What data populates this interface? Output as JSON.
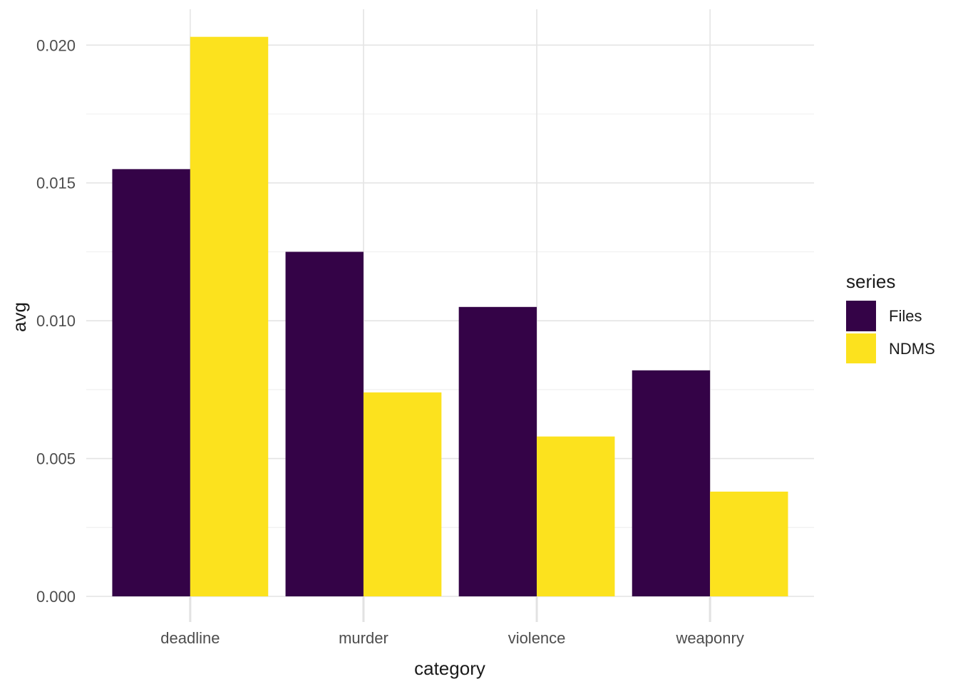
{
  "chart_data": {
    "type": "bar",
    "variant": "grouped-dodged",
    "title": "",
    "xlabel": "category",
    "ylabel": "avg",
    "categories": [
      "deadline",
      "murder",
      "violence",
      "weaponry"
    ],
    "series": [
      {
        "name": "Files",
        "color": "#340347",
        "values": [
          0.0155,
          0.0125,
          0.0105,
          0.0082
        ]
      },
      {
        "name": "NDMS",
        "color": "#FCE21E",
        "values": [
          0.0203,
          0.0074,
          0.0058,
          0.0038
        ]
      }
    ],
    "legend": {
      "title": "series",
      "position": "right",
      "entries": [
        "Files",
        "NDMS"
      ]
    },
    "y_axis": {
      "ticks": [
        0,
        0.005,
        0.01,
        0.015,
        0.02
      ],
      "tick_labels": [
        "0.000",
        "0.005",
        "0.010",
        "0.015",
        "0.020"
      ],
      "minor_ticks": [
        0.0025,
        0.0075,
        0.0125,
        0.0175
      ],
      "ylim": [
        0,
        0.0213
      ]
    },
    "grid": "horizontal major+minor gridlines; vertical major gridlines at category centers; no axis lines (minimal theme)",
    "bar_width_fraction": 0.9
  },
  "palette": {
    "background": "#FFFFFF",
    "tick_label_color": "#4D4D4D",
    "axis_title_color": "#1A1A1A",
    "legend_text_color": "#1A1A1A",
    "gridline_major": "#E4E4E4",
    "gridline_minor": "#EFEFEF",
    "axis_tick_mark": "#E2E2E2"
  }
}
